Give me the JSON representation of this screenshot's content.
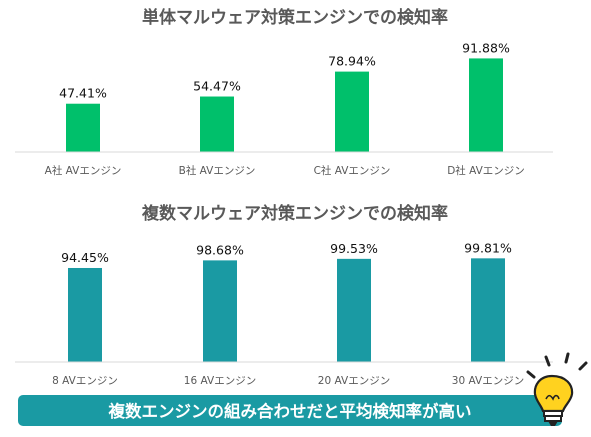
{
  "chart_data": [
    {
      "type": "bar",
      "title": "単体マルウェア対策エンジンでの検知率",
      "categories": [
        "A社 AVエンジン",
        "B社 AVエンジン",
        "C社 AVエンジン",
        "D社 AVエンジン"
      ],
      "values": [
        47.41,
        54.47,
        78.94,
        91.88
      ],
      "value_labels": [
        "47.41%",
        "54.47%",
        "78.94%",
        "91.88%"
      ],
      "ylim": [
        0,
        100
      ],
      "color": "#00c06b",
      "grid": false
    },
    {
      "type": "bar",
      "title": "複数マルウェア対策エンジンでの検知率",
      "categories": [
        "8 AVエンジン",
        "16 AVエンジン",
        "20 AVエンジン",
        "30 AVエンジン"
      ],
      "values": [
        94.45,
        98.68,
        99.53,
        99.81
      ],
      "value_labels": [
        "94.45%",
        "98.68%",
        "99.53%",
        "99.81%"
      ],
      "ylim": [
        0,
        100
      ],
      "color": "#1a9aa3",
      "grid": false
    }
  ],
  "banner": {
    "text": "複数エンジンの組み合わせだと平均検知率が高い",
    "color": "#1a9aa3"
  },
  "bulb_icon": "lightbulb-icon"
}
